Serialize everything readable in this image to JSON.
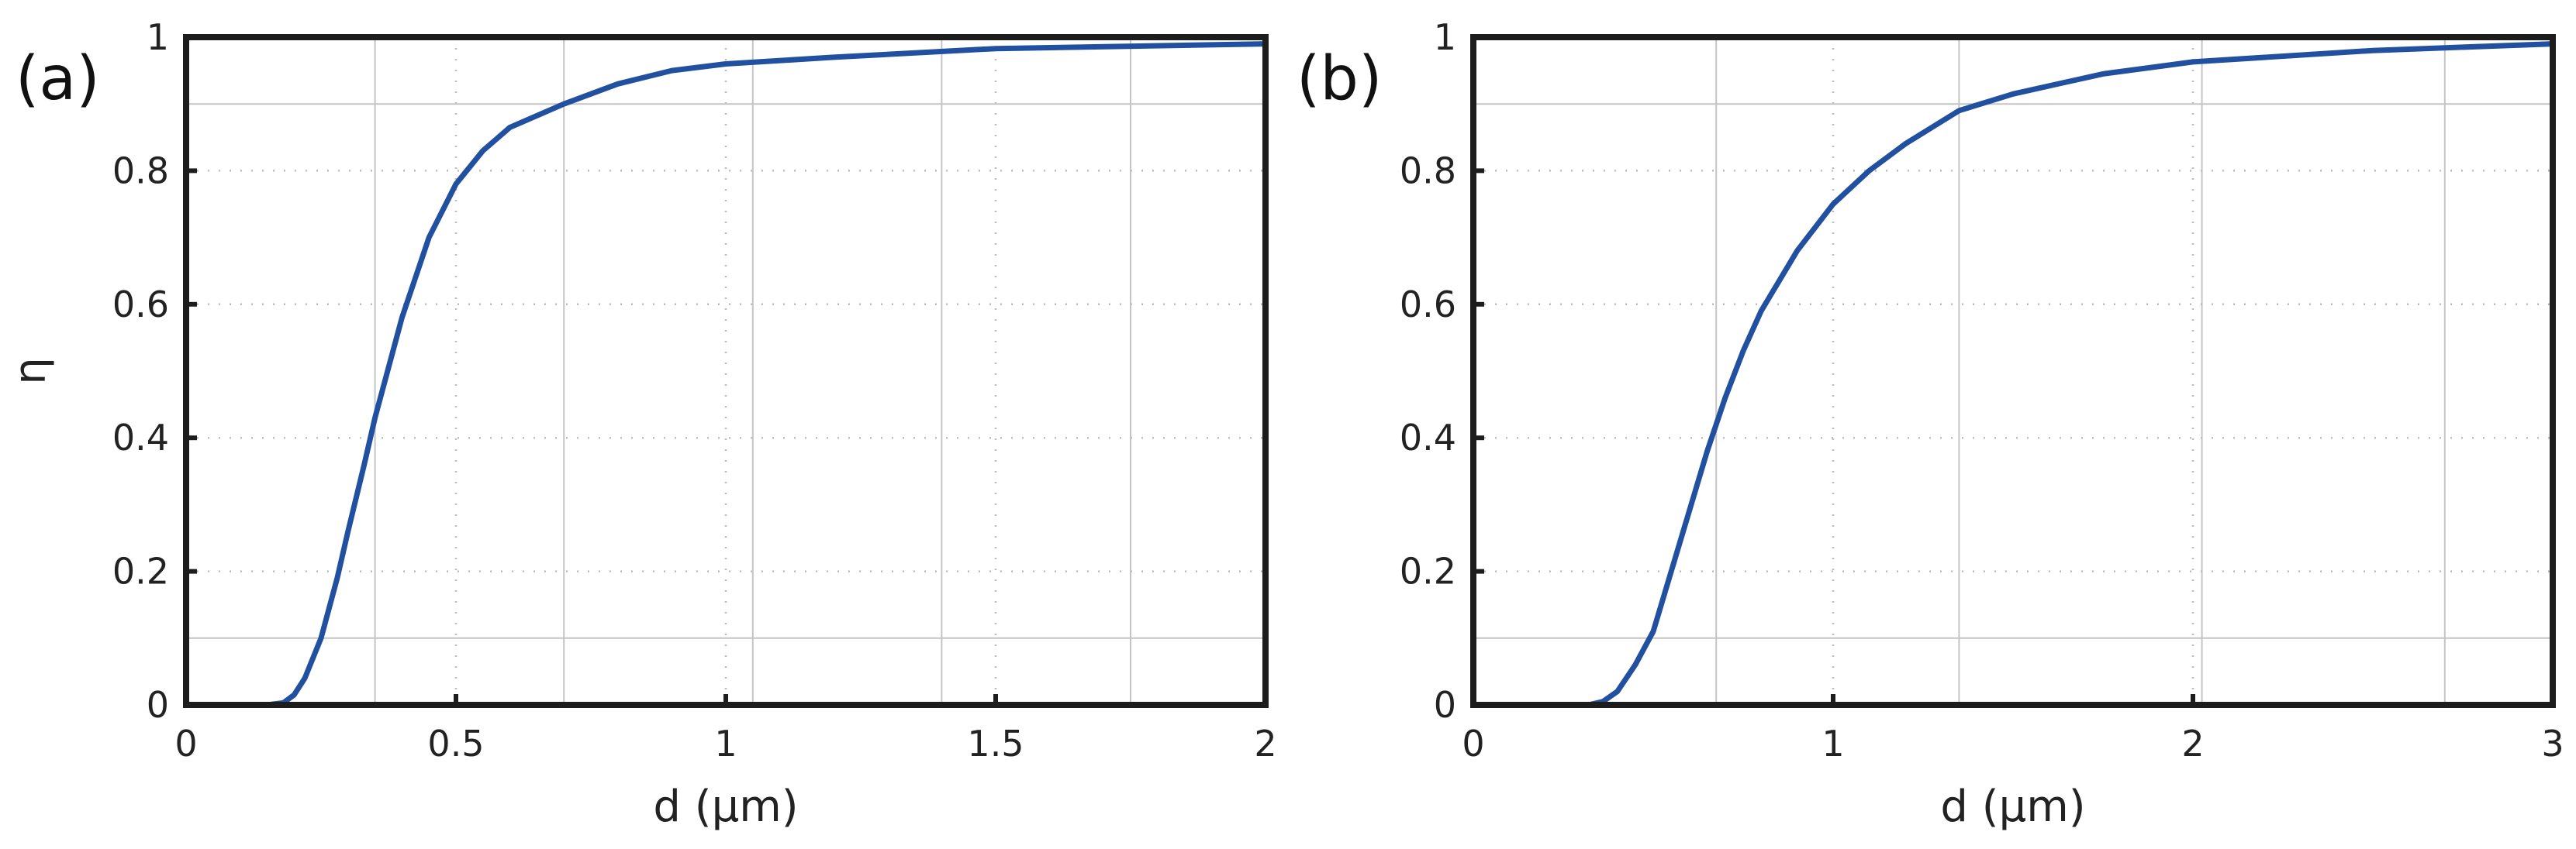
{
  "chart_data": [
    {
      "type": "line",
      "panel_label": "(a)",
      "xlabel": "d (μm)",
      "ylabel": "η",
      "xlim": [
        0,
        2
      ],
      "ylim": [
        0,
        1
      ],
      "xticks": [
        0,
        0.5,
        1,
        1.5,
        2
      ],
      "xtick_labels": [
        "0",
        "0.5",
        "1",
        "1.5",
        "2"
      ],
      "yticks": [
        0,
        0.2,
        0.4,
        0.6,
        0.8,
        1
      ],
      "ytick_labels": [
        "0",
        "0.2",
        "0.4",
        "0.6",
        "0.8",
        "1"
      ],
      "grid": true,
      "line_color": "#2150a0",
      "series": [
        {
          "x": [
            0,
            0.15,
            0.18,
            0.2,
            0.22,
            0.25,
            0.28,
            0.3,
            0.33,
            0.35,
            0.4,
            0.45,
            0.5,
            0.55,
            0.6,
            0.7,
            0.8,
            0.9,
            1.0,
            1.2,
            1.5,
            2.0
          ],
          "y": [
            0,
            0,
            0.003,
            0.015,
            0.04,
            0.1,
            0.19,
            0.26,
            0.36,
            0.43,
            0.58,
            0.7,
            0.78,
            0.83,
            0.865,
            0.9,
            0.93,
            0.95,
            0.96,
            0.97,
            0.983,
            0.99
          ]
        }
      ]
    },
    {
      "type": "line",
      "panel_label": "(b)",
      "xlabel": "d (μm)",
      "ylabel": "",
      "xlim": [
        0,
        3
      ],
      "ylim": [
        0,
        1
      ],
      "xticks": [
        0,
        1,
        2,
        3
      ],
      "xtick_labels": [
        "0",
        "1",
        "2",
        "3"
      ],
      "yticks": [
        0,
        0.2,
        0.4,
        0.6,
        0.8,
        1
      ],
      "ytick_labels": [
        "0",
        "0.2",
        "0.4",
        "0.6",
        "0.8",
        "1"
      ],
      "grid": true,
      "line_color": "#2150a0",
      "series": [
        {
          "x": [
            0,
            0.32,
            0.36,
            0.4,
            0.45,
            0.5,
            0.55,
            0.6,
            0.65,
            0.7,
            0.75,
            0.8,
            0.9,
            1.0,
            1.1,
            1.2,
            1.35,
            1.5,
            1.75,
            2.0,
            2.5,
            3.0
          ],
          "y": [
            0,
            0,
            0.005,
            0.02,
            0.06,
            0.11,
            0.2,
            0.29,
            0.38,
            0.46,
            0.53,
            0.59,
            0.68,
            0.75,
            0.8,
            0.84,
            0.89,
            0.915,
            0.945,
            0.963,
            0.98,
            0.99
          ]
        }
      ]
    }
  ]
}
